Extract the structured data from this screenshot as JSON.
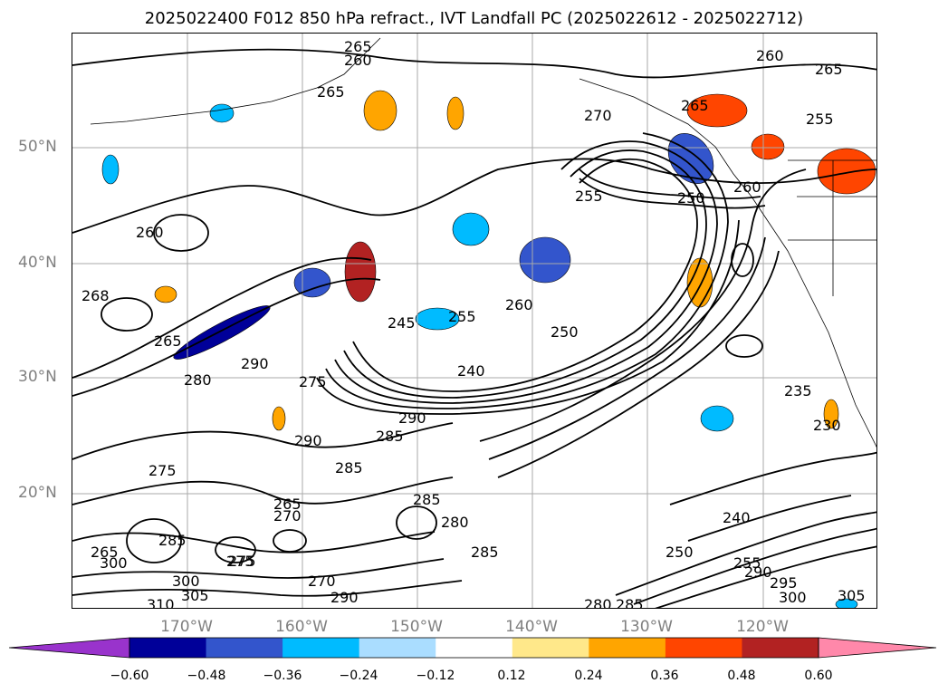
{
  "title": "2025022400 F012 850 hPa refract., IVT Landfall PC (2025022612 - 2025022712)",
  "lat_labels": [
    "50°N",
    "40°N",
    "30°N",
    "20°N"
  ],
  "lon_labels": [
    "170°W",
    "160°W",
    "150°W",
    "140°W",
    "130°W",
    "120°W"
  ],
  "colorbar": {
    "ticks": [
      "−0.60",
      "−0.48",
      "−0.36",
      "−0.24",
      "−0.12",
      "0.12",
      "0.24",
      "0.36",
      "0.48",
      "0.60"
    ],
    "colors": [
      "#9933cc",
      "#000099",
      "#3355cc",
      "#00bbff",
      "#aaddff",
      "#ffffff",
      "#ffe88a",
      "#ffa500",
      "#ff4500",
      "#b22222",
      "#ff88aa"
    ]
  },
  "contour_labels": [
    {
      "text": "265"
    },
    {
      "text": "260"
    },
    {
      "text": "265"
    },
    {
      "text": "270"
    },
    {
      "text": "260"
    },
    {
      "text": "265"
    },
    {
      "text": "255"
    },
    {
      "text": "265"
    },
    {
      "text": "255"
    },
    {
      "text": "250"
    },
    {
      "text": "260"
    },
    {
      "text": "260"
    },
    {
      "text": "268"
    },
    {
      "text": "265"
    },
    {
      "text": "245"
    },
    {
      "text": "255"
    },
    {
      "text": "260"
    },
    {
      "text": "250"
    },
    {
      "text": "240"
    },
    {
      "text": "280"
    },
    {
      "text": "290"
    },
    {
      "text": "275"
    },
    {
      "text": "290"
    },
    {
      "text": "285"
    },
    {
      "text": "290"
    },
    {
      "text": "275"
    },
    {
      "text": "285"
    },
    {
      "text": "265"
    },
    {
      "text": "270"
    },
    {
      "text": "285"
    },
    {
      "text": "280"
    },
    {
      "text": "285"
    },
    {
      "text": "275"
    },
    {
      "text": "270"
    },
    {
      "text": "290"
    },
    {
      "text": "310"
    },
    {
      "text": "305"
    },
    {
      "text": "300"
    },
    {
      "text": "240"
    },
    {
      "text": "250"
    },
    {
      "text": "235"
    },
    {
      "text": "230"
    },
    {
      "text": "255"
    },
    {
      "text": "290"
    },
    {
      "text": "295"
    },
    {
      "text": "300"
    },
    {
      "text": "305"
    },
    {
      "text": "280"
    },
    {
      "text": "285"
    },
    {
      "text": "275"
    },
    {
      "text": "265"
    },
    {
      "text": "285"
    },
    {
      "text": "300"
    }
  ],
  "shading": [
    {
      "color": "#ffa500"
    },
    {
      "color": "#ffa500"
    },
    {
      "color": "#ff4500"
    },
    {
      "color": "#ff4500"
    },
    {
      "color": "#ff4500"
    },
    {
      "color": "#b22222"
    },
    {
      "color": "#ffa500"
    },
    {
      "color": "#3355cc"
    },
    {
      "color": "#00bbff"
    },
    {
      "color": "#00bbff"
    },
    {
      "color": "#3355cc"
    },
    {
      "color": "#00bbff"
    },
    {
      "color": "#3355cc"
    },
    {
      "color": "#000099"
    },
    {
      "color": "#ffa500"
    },
    {
      "color": "#ffa500"
    },
    {
      "color": "#00bbff"
    },
    {
      "color": "#00bbff"
    },
    {
      "color": "#ffa500"
    },
    {
      "color": "#00bbff"
    }
  ]
}
